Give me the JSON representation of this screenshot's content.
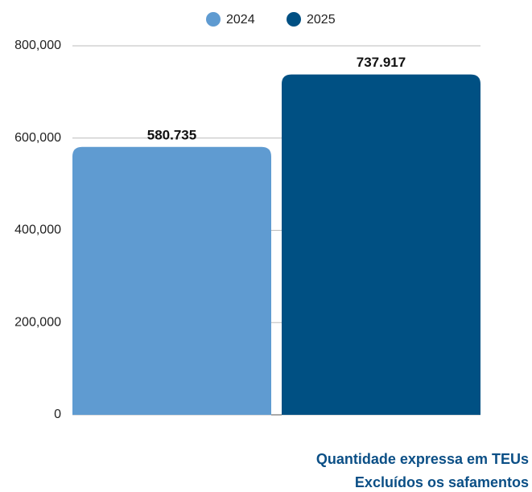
{
  "chart_data": {
    "type": "bar",
    "categories": [
      null
    ],
    "series": [
      {
        "name": "2024",
        "color": "#5f9bd1",
        "values": [
          580735
        ],
        "value_labels": [
          "580.735"
        ]
      },
      {
        "name": "2025",
        "color": "#005083",
        "values": [
          737917
        ],
        "value_labels": [
          "737.917"
        ]
      }
    ],
    "ylim": [
      0,
      800000
    ],
    "yticks": [
      0,
      {
        "value": 200000,
        "label": "200,000"
      },
      {
        "value": 400000,
        "label": "400,000"
      },
      {
        "value": 600000,
        "label": "600,000"
      },
      {
        "value": 800000,
        "label": "800,000"
      }
    ],
    "grid": true,
    "legend": "top",
    "annotations": [
      "Quantidade expressa em TEUs",
      "Excluídos os safamentos"
    ]
  }
}
